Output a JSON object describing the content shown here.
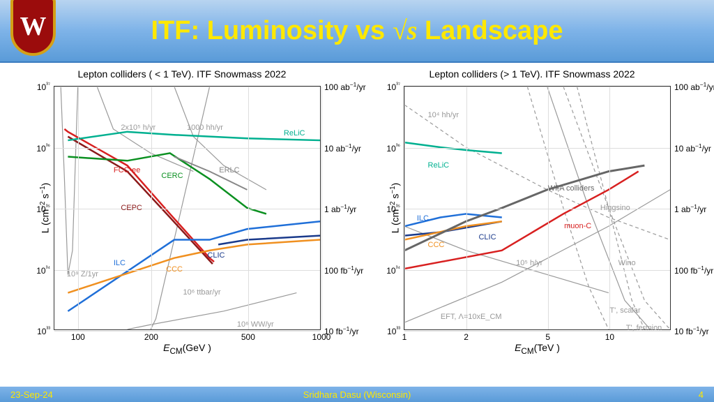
{
  "header": {
    "title_prefix": "ITF: Luminosity vs ",
    "title_math": "√s",
    "title_suffix": " Landscape"
  },
  "footer": {
    "date": "23-Sep-24",
    "author": "Sridhara Dasu (Wisconsin)",
    "page": "4"
  },
  "colors": {
    "red": "#d82020",
    "darkred": "#8b1a1a",
    "blue": "#1f6fd8",
    "darkblue": "#1a3a8b",
    "green": "#0a9020",
    "orange": "#f09020",
    "teal": "#00b090",
    "gray": "#888",
    "darkgray": "#555",
    "lightgray": "#aaa"
  },
  "chart_left": {
    "title": "Lepton colliders ( < 1 TeV). ITF Snowmass 2022",
    "xlabel": "E_CM (GeV )",
    "ylabel": "L (cm⁻² s⁻¹)",
    "xlim": [
      80,
      1000
    ],
    "ylim": [
      1e+33,
      1e+37
    ],
    "xlog": true,
    "ylog": true,
    "xticks": [
      {
        "v": 100,
        "l": "100"
      },
      {
        "v": 200,
        "l": "200"
      },
      {
        "v": 500,
        "l": "500"
      },
      {
        "v": 1000,
        "l": "1000"
      }
    ],
    "yticks": [
      {
        "v": 1e+33,
        "l": "10³³"
      },
      {
        "v": 1e+34,
        "l": "10³⁴"
      },
      {
        "v": 1e+35,
        "l": "10³⁵"
      },
      {
        "v": 1e+36,
        "l": "10³⁶"
      },
      {
        "v": 1e+37,
        "l": "10³⁷"
      }
    ],
    "yticks_r": [
      {
        "v": 1e+33,
        "l": "10 fb⁻¹/yr"
      },
      {
        "v": 1e+34,
        "l": "100 fb⁻¹/yr"
      },
      {
        "v": 1e+35,
        "l": "1 ab⁻¹/yr"
      },
      {
        "v": 1e+36,
        "l": "10 ab⁻¹/yr"
      },
      {
        "v": 1e+37,
        "l": "100 ab⁻¹/yr"
      }
    ],
    "series": [
      {
        "name": "FCC-ee",
        "color": "#d82020",
        "width": 2.5,
        "label_x": 140,
        "label_y": 5e+35,
        "pts": [
          [
            88,
            2e+36
          ],
          [
            91,
            1.8e+36
          ],
          [
            160,
            5e+35
          ],
          [
            240,
            8e+34
          ],
          [
            350,
            1.5e+34
          ],
          [
            365,
            1.3e+34
          ]
        ]
      },
      {
        "name": "CEPC",
        "color": "#8b1a1a",
        "width": 2.5,
        "label_x": 150,
        "label_y": 1.2e+35,
        "pts": [
          [
            91,
            1.5e+36
          ],
          [
            160,
            4e+35
          ],
          [
            240,
            7e+34
          ],
          [
            360,
            1.2e+34
          ]
        ]
      },
      {
        "name": "ReLiC",
        "color": "#00b090",
        "width": 2.5,
        "label_x": 700,
        "label_y": 2e+36,
        "pts": [
          [
            91,
            1.3e+36
          ],
          [
            160,
            1.8e+36
          ],
          [
            250,
            1.6e+36
          ],
          [
            500,
            1.4e+36
          ],
          [
            1000,
            1.3e+36
          ]
        ]
      },
      {
        "name": "CERC",
        "color": "#0a9020",
        "width": 2.5,
        "label_x": 220,
        "label_y": 4e+35,
        "pts": [
          [
            91,
            7e+35
          ],
          [
            160,
            6e+35
          ],
          [
            240,
            8e+35
          ],
          [
            350,
            3e+35
          ],
          [
            500,
            1e+35
          ],
          [
            600,
            8e+34
          ]
        ]
      },
      {
        "name": "ERLC",
        "color": "#888",
        "width": 2,
        "label_x": 380,
        "label_y": 5e+35,
        "pts": [
          [
            250,
            7e+35
          ],
          [
            350,
            4e+35
          ],
          [
            500,
            2e+35
          ]
        ]
      },
      {
        "name": "ILC",
        "color": "#1f6fd8",
        "width": 2.5,
        "label_x": 140,
        "label_y": 1.5e+34,
        "pts": [
          [
            91,
            2e+33
          ],
          [
            250,
            3e+34
          ],
          [
            350,
            3e+34
          ],
          [
            500,
            4.5e+34
          ],
          [
            1000,
            6e+34
          ]
        ]
      },
      {
        "name": "CLIC",
        "color": "#1a3a8b",
        "width": 2.5,
        "label_x": 340,
        "label_y": 2e+34,
        "pts": [
          [
            380,
            2.5e+34
          ],
          [
            500,
            3e+34
          ],
          [
            1000,
            3.5e+34
          ]
        ]
      },
      {
        "name": "CCC",
        "color": "#f09020",
        "width": 2.5,
        "label_x": 230,
        "label_y": 1.2e+34,
        "pts": [
          [
            91,
            4e+33
          ],
          [
            250,
            1.5e+34
          ],
          [
            350,
            2e+34
          ],
          [
            500,
            2.5e+34
          ],
          [
            1000,
            3e+34
          ]
        ]
      }
    ],
    "gray_curves": [
      {
        "name": "2x10⁵ h/yr",
        "label_x": 150,
        "label_y": 2.5e+36,
        "dash": "0",
        "pts": [
          [
            120,
            1e+37
          ],
          [
            140,
            2e+36
          ],
          [
            200,
            8e+35
          ],
          [
            300,
            4e+35
          ]
        ]
      },
      {
        "name": "1000 hh/yr",
        "label_x": 280,
        "label_y": 2.5e+36,
        "dash": "0",
        "pts": [
          [
            250,
            1e+37
          ],
          [
            300,
            1.5e+36
          ],
          [
            400,
            5e+35
          ],
          [
            600,
            2e+35
          ]
        ]
      },
      {
        "name": "10⁹ Z/1yr",
        "label_x": 90,
        "label_y": 1e+34,
        "dash": "0",
        "pts": [
          [
            85,
            1e+37
          ],
          [
            88,
            3e+35
          ],
          [
            91,
            8e+33
          ],
          [
            95,
            2e+34
          ],
          [
            100,
            1e+37
          ]
        ]
      },
      {
        "name": "10⁶ ttbar/yr",
        "label_x": 270,
        "label_y": 5e+33,
        "dash": "0",
        "pts": [
          [
            200,
            1e+33
          ],
          [
            210,
            1.5e+33
          ],
          [
            350,
            1e+37
          ]
        ]
      },
      {
        "name": "10⁶ WW/yr",
        "label_x": 450,
        "label_y": 1.5e+33,
        "dash": "0",
        "pts": [
          [
            160,
            1e+33
          ],
          [
            200,
            1.2e+33
          ],
          [
            400,
            2e+33
          ],
          [
            800,
            4e+33
          ]
        ]
      }
    ]
  },
  "chart_right": {
    "title": "Lepton colliders (> 1 TeV). ITF Snowmass 2022",
    "xlabel": "E_CM (TeV )",
    "ylabel": "L (cm⁻² s⁻¹)",
    "xlim": [
      1,
      20
    ],
    "ylim": [
      1e+33,
      1e+37
    ],
    "xlog": true,
    "ylog": true,
    "xticks": [
      {
        "v": 1,
        "l": "1"
      },
      {
        "v": 2,
        "l": "2"
      },
      {
        "v": 5,
        "l": "5"
      },
      {
        "v": 10,
        "l": "10"
      }
    ],
    "yticks": [
      {
        "v": 1e+33,
        "l": "10³³"
      },
      {
        "v": 1e+34,
        "l": "10³⁴"
      },
      {
        "v": 1e+35,
        "l": "10³⁵"
      },
      {
        "v": 1e+36,
        "l": "10³⁶"
      },
      {
        "v": 1e+37,
        "l": "10³⁷"
      }
    ],
    "yticks_r": [
      {
        "v": 1e+33,
        "l": "10 fb⁻¹/yr"
      },
      {
        "v": 1e+34,
        "l": "100 fb⁻¹/yr"
      },
      {
        "v": 1e+35,
        "l": "1 ab⁻¹/yr"
      },
      {
        "v": 1e+36,
        "l": "10 ab⁻¹/yr"
      },
      {
        "v": 1e+37,
        "l": "100 ab⁻¹/yr"
      }
    ],
    "series": [
      {
        "name": "ReLiC",
        "color": "#00b090",
        "width": 2.5,
        "label_x": 1.3,
        "label_y": 6e+35,
        "pts": [
          [
            1,
            1.2e+36
          ],
          [
            1.5,
            1e+36
          ],
          [
            2,
            9e+35
          ],
          [
            3,
            8e+35
          ]
        ]
      },
      {
        "name": "ILC",
        "color": "#1f6fd8",
        "width": 2.5,
        "label_x": 1.15,
        "label_y": 8e+34,
        "pts": [
          [
            1,
            5e+34
          ],
          [
            1.5,
            7e+34
          ],
          [
            2,
            8e+34
          ],
          [
            3,
            7e+34
          ]
        ]
      },
      {
        "name": "CLIC",
        "color": "#1a3a8b",
        "width": 2.5,
        "label_x": 2.3,
        "label_y": 4e+34,
        "pts": [
          [
            1,
            3.5e+34
          ],
          [
            1.5,
            4e+34
          ],
          [
            3,
            6e+34
          ]
        ]
      },
      {
        "name": "CCC",
        "color": "#f09020",
        "width": 2.5,
        "label_x": 1.3,
        "label_y": 3e+34,
        "pts": [
          [
            1,
            3e+34
          ],
          [
            2,
            5e+34
          ],
          [
            3,
            6e+34
          ]
        ]
      },
      {
        "name": "muon-C",
        "color": "#d82020",
        "width": 2.5,
        "label_x": 6,
        "label_y": 6e+34,
        "pts": [
          [
            1,
            1e+34
          ],
          [
            3,
            2e+34
          ],
          [
            6,
            8e+34
          ],
          [
            10,
            2e+35
          ],
          [
            14,
            4e+35
          ]
        ]
      },
      {
        "name": "WFA colliders",
        "color": "#666",
        "width": 3,
        "label_x": 5,
        "label_y": 2.5e+35,
        "pts": [
          [
            1,
            2e+34
          ],
          [
            2,
            6e+34
          ],
          [
            3,
            1e+35
          ],
          [
            5,
            2e+35
          ],
          [
            10,
            4e+35
          ],
          [
            15,
            5e+35
          ]
        ]
      }
    ],
    "gray_curves": [
      {
        "name": "10⁴ hh/yr",
        "label_x": 1.3,
        "label_y": 4e+36,
        "dash": "5,4",
        "pts": [
          [
            1,
            5e+36
          ],
          [
            2,
            1e+36
          ],
          [
            5,
            2e+35
          ],
          [
            10,
            7e+34
          ],
          [
            20,
            3e+34
          ]
        ]
      },
      {
        "name": "10⁵ h/yr",
        "label_x": 3.5,
        "label_y": 1.5e+34,
        "dash": "0",
        "pts": [
          [
            1,
            5e+34
          ],
          [
            2,
            2e+34
          ],
          [
            5,
            8e+33
          ],
          [
            10,
            4e+33
          ]
        ]
      },
      {
        "name": "Higgsino",
        "label_x": 9,
        "label_y": 1.2e+35,
        "dash": "5,4",
        "pts": [
          [
            4,
            1e+37
          ],
          [
            6,
            1e+35
          ],
          [
            8,
            5e+33
          ],
          [
            10,
            1e+33
          ]
        ]
      },
      {
        "name": "Wino",
        "label_x": 11,
        "label_y": 1.5e+34,
        "dash": "5,4",
        "pts": [
          [
            7,
            1e+37
          ],
          [
            10,
            1e+35
          ],
          [
            13,
            3e+33
          ],
          [
            15,
            1e+33
          ]
        ]
      },
      {
        "name": "T', scalar",
        "label_x": 10,
        "label_y": 2.5e+33,
        "dash": "0",
        "pts": [
          [
            5,
            1e+37
          ],
          [
            8,
            1e+35
          ],
          [
            12,
            3e+33
          ],
          [
            16,
            1e+33
          ]
        ]
      },
      {
        "name": "T', fermion",
        "label_x": 12,
        "label_y": 1.3e+33,
        "dash": "5,4",
        "pts": [
          [
            6,
            1e+37
          ],
          [
            10,
            1e+35
          ],
          [
            15,
            3e+33
          ],
          [
            20,
            1e+33
          ]
        ]
      },
      {
        "name": "EFT, Λ=10xE_CM",
        "label_x": 1.5,
        "label_y": 2e+33,
        "dash": "0",
        "pts": [
          [
            1,
            1.3e+33
          ],
          [
            3,
            6e+33
          ],
          [
            10,
            5e+34
          ],
          [
            20,
            2e+35
          ]
        ]
      }
    ]
  }
}
